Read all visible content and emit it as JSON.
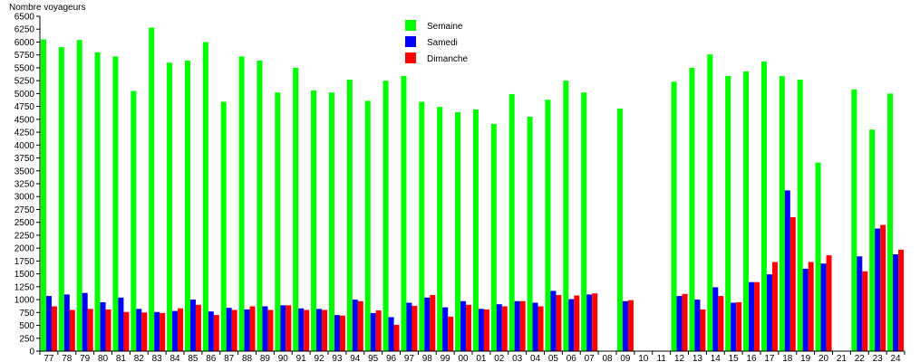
{
  "chart_data": {
    "type": "bar",
    "ylabel": "Nombre voyageurs",
    "ylim": [
      0,
      6500
    ],
    "yticks": [
      0,
      250,
      500,
      750,
      1000,
      1250,
      1500,
      1750,
      2000,
      2250,
      2500,
      2750,
      3000,
      3250,
      3500,
      3750,
      4000,
      4250,
      4500,
      4750,
      5000,
      5250,
      5500,
      5750,
      6000,
      6250,
      6500
    ],
    "grid": false,
    "legend_position": "top-center",
    "categories": [
      "77",
      "78",
      "79",
      "80",
      "81",
      "82",
      "83",
      "84",
      "85",
      "86",
      "87",
      "88",
      "89",
      "90",
      "91",
      "92",
      "93",
      "94",
      "95",
      "96",
      "97",
      "98",
      "99",
      "00",
      "01",
      "02",
      "03",
      "04",
      "05",
      "06",
      "07",
      "08",
      "09",
      "10",
      "11",
      "12",
      "13",
      "14",
      "15",
      "16",
      "17",
      "18",
      "19",
      "20",
      "21",
      "22",
      "23",
      "24"
    ],
    "series": [
      {
        "name": "Semaine",
        "color": "#00ff00",
        "values": [
          6050,
          5900,
          6040,
          5800,
          5720,
          5050,
          6280,
          5600,
          5640,
          6000,
          4840,
          5720,
          5640,
          5020,
          5500,
          5060,
          5020,
          5270,
          4860,
          5250,
          5340,
          4840,
          4740,
          4640,
          4690,
          4410,
          4990,
          4550,
          4880,
          5250,
          5020,
          null,
          4710,
          null,
          null,
          5230,
          5500,
          5760,
          5340,
          5430,
          5620,
          5340,
          5270,
          3660,
          null,
          5080,
          4300,
          5000
        ]
      },
      {
        "name": "Samedi",
        "color": "#0000ff",
        "values": [
          1070,
          1100,
          1130,
          950,
          1040,
          820,
          760,
          780,
          1000,
          770,
          840,
          810,
          870,
          890,
          830,
          820,
          700,
          1000,
          740,
          660,
          940,
          1040,
          850,
          970,
          820,
          910,
          970,
          940,
          1170,
          1010,
          1100,
          null,
          970,
          null,
          null,
          1070,
          1000,
          1240,
          940,
          1340,
          1490,
          3120,
          1600,
          1700,
          null,
          1840,
          2380,
          1880
        ]
      },
      {
        "name": "Dimanche",
        "color": "#ff0000",
        "values": [
          870,
          800,
          820,
          810,
          760,
          750,
          740,
          830,
          900,
          700,
          800,
          870,
          800,
          890,
          800,
          800,
          690,
          970,
          790,
          510,
          880,
          1090,
          670,
          900,
          810,
          870,
          970,
          870,
          1090,
          1080,
          1120,
          null,
          990,
          null,
          null,
          1110,
          810,
          1070,
          950,
          1340,
          1730,
          2600,
          1730,
          1860,
          null,
          1550,
          2450,
          1970
        ]
      }
    ]
  }
}
